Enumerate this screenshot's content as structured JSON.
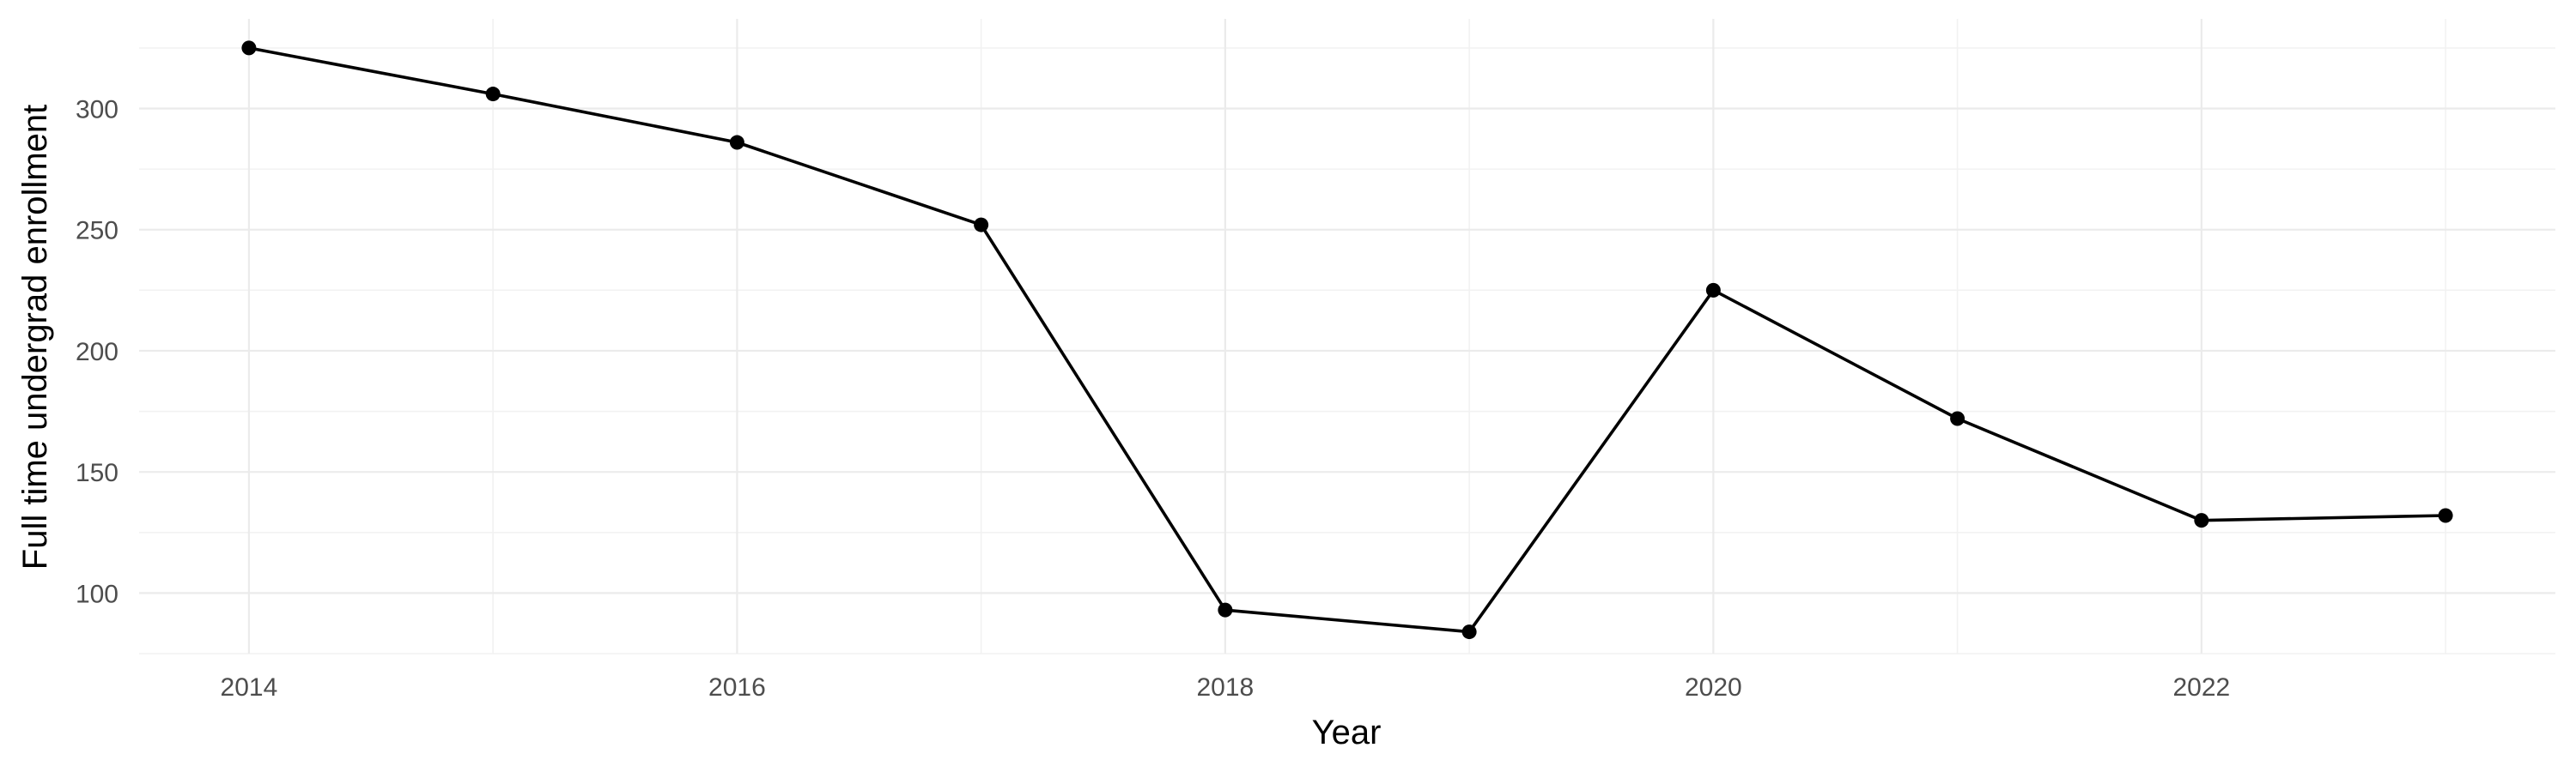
{
  "chart_data": {
    "type": "line",
    "xlabel": "Year",
    "ylabel": "Full time undergrad enrollment",
    "x": [
      2014,
      2015,
      2016,
      2017,
      2018,
      2019,
      2020,
      2021,
      2022,
      2023
    ],
    "series": [
      {
        "values": [
          325,
          306,
          286,
          252,
          93,
          84,
          225,
          172,
          130,
          132
        ]
      }
    ],
    "xlim": [
      2013.55,
      2023.45
    ],
    "ylim": [
      75,
      337
    ],
    "x_ticks": [
      2014,
      2016,
      2018,
      2020,
      2022
    ],
    "x_tick_labels": [
      "2014",
      "2016",
      "2018",
      "2020",
      "2022"
    ],
    "y_ticks": [
      100,
      150,
      200,
      250,
      300
    ],
    "y_tick_labels": [
      "100",
      "150",
      "200",
      "250",
      "300"
    ],
    "grid": true,
    "legend": "none"
  }
}
